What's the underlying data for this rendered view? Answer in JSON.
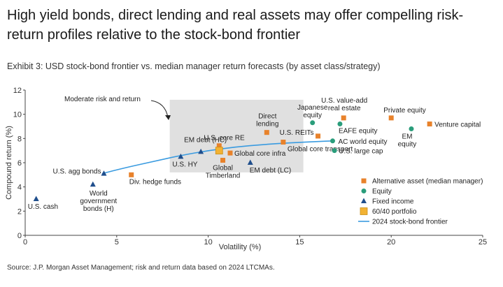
{
  "title": "High yield bonds, direct lending and real assets may offer compelling risk-return profiles relative to the stock-bond frontier",
  "subtitle": "Exhibit 3: USD stock-bond frontier vs. median manager return forecasts (by asset class/strategy)",
  "source": "Source: J.P. Morgan Asset Management; risk and return data based on 2024 LTCMAs.",
  "colors": {
    "alternative": "#e8822b",
    "equity": "#2a9d7b",
    "fixed_income": "#1f4e8c",
    "portfolio": "#f2b233",
    "frontier": "#3a9be0",
    "highlight": "#e0e0e0"
  },
  "chart_data": {
    "type": "scatter",
    "xlabel": "Volatility (%)",
    "ylabel": "Compound return (%)",
    "xlim": [
      0,
      25
    ],
    "ylim": [
      0,
      12
    ],
    "xticks": [
      "0",
      "5",
      "10",
      "15",
      "20",
      "25"
    ],
    "yticks": [
      "0",
      "2",
      "4",
      "6",
      "8",
      "10",
      "12"
    ],
    "annotation": "Moderate risk and return",
    "highlight_region": {
      "x": [
        7.9,
        15.2
      ],
      "y": [
        5.2,
        11.2
      ]
    },
    "legend": [
      {
        "key": "alternative",
        "label": "Alternative asset (median manager)",
        "marker": "square"
      },
      {
        "key": "equity",
        "label": "Equity",
        "marker": "circle"
      },
      {
        "key": "fixed_income",
        "label": "Fixed income",
        "marker": "triangle"
      },
      {
        "key": "portfolio",
        "label": "60/40 portfolio",
        "marker": "bigsquare"
      },
      {
        "key": "frontier",
        "label": "2024 stock-bond frontier",
        "marker": "line"
      }
    ],
    "frontier": {
      "x": [
        4.2,
        5.5,
        7.0,
        8.5,
        10.0,
        11.5,
        13.0,
        14.5,
        16.0,
        16.8
      ],
      "y": [
        5.1,
        5.6,
        6.1,
        6.6,
        7.0,
        7.3,
        7.5,
        7.65,
        7.75,
        7.8
      ]
    },
    "points": [
      {
        "label": "U.S. cash",
        "x": 0.6,
        "y": 3.0,
        "series": "fixed_income"
      },
      {
        "label": "World government bonds (H)",
        "x": 3.7,
        "y": 4.2,
        "series": "fixed_income"
      },
      {
        "label": "U.S. agg bonds",
        "x": 4.3,
        "y": 5.1,
        "series": "fixed_income"
      },
      {
        "label": "U.S. HY",
        "x": 8.5,
        "y": 6.5,
        "series": "fixed_income"
      },
      {
        "label": "EM debt (HC)",
        "x": 9.6,
        "y": 6.9,
        "series": "fixed_income"
      },
      {
        "label": "EM debt (LC)",
        "x": 12.3,
        "y": 6.0,
        "series": "fixed_income"
      },
      {
        "label": "Div. hedge funds",
        "x": 5.8,
        "y": 5.0,
        "series": "alternative"
      },
      {
        "label": "U.S. core RE",
        "x": 10.6,
        "y": 7.4,
        "series": "alternative"
      },
      {
        "label": "Global Timberland",
        "x": 10.8,
        "y": 6.2,
        "series": "alternative"
      },
      {
        "label": "Global core infra",
        "x": 11.2,
        "y": 6.8,
        "series": "alternative"
      },
      {
        "label": "Direct lending",
        "x": 13.2,
        "y": 8.5,
        "series": "alternative"
      },
      {
        "label": "Global core transport",
        "x": 14.1,
        "y": 7.7,
        "series": "alternative"
      },
      {
        "label": "U.S. REITs",
        "x": 16.0,
        "y": 8.2,
        "series": "alternative"
      },
      {
        "label": "U.S. value-add real estate",
        "x": 17.4,
        "y": 9.7,
        "series": "alternative"
      },
      {
        "label": "Private equity",
        "x": 20.0,
        "y": 9.7,
        "series": "alternative"
      },
      {
        "label": "Venture capital",
        "x": 22.1,
        "y": 9.2,
        "series": "alternative"
      },
      {
        "label": "Japanese equity",
        "x": 15.7,
        "y": 9.3,
        "series": "equity"
      },
      {
        "label": "AC world equity",
        "x": 16.8,
        "y": 7.8,
        "series": "equity"
      },
      {
        "label": "U.S. large cap",
        "x": 16.9,
        "y": 7.0,
        "series": "equity"
      },
      {
        "label": "EAFE equity",
        "x": 17.2,
        "y": 9.2,
        "series": "equity"
      },
      {
        "label": "EM equity",
        "x": 21.1,
        "y": 8.8,
        "series": "equity"
      },
      {
        "label": "60/40 portfolio",
        "x": 10.6,
        "y": 7.0,
        "series": "portfolio"
      }
    ]
  }
}
